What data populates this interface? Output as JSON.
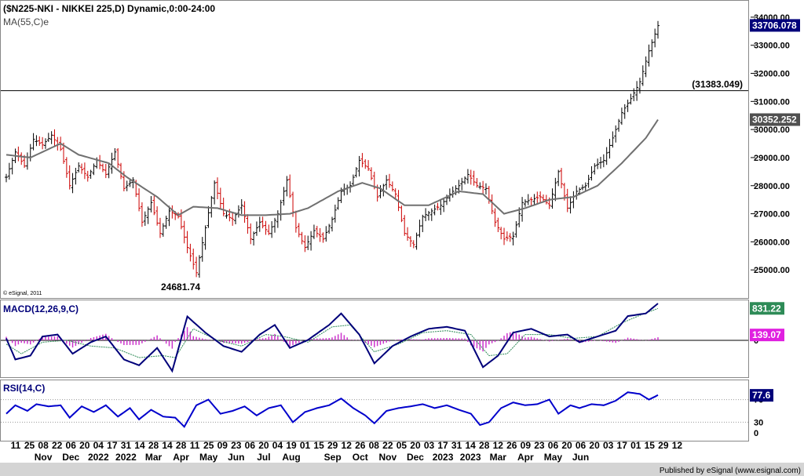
{
  "title": "($N225-NKI - NIKKEI 225,D) Dynamic,0:00-24:00",
  "ma_label": "MA(55,C)e",
  "copyright": "© eSignal, 2011",
  "credit": "Published by eSignal (www.esignal.com)",
  "colors": {
    "up_bar": "#000000",
    "down_bar": "#cc0000",
    "ma_line": "#707070",
    "macd_line": "#00007a",
    "signal_line": "#2e8b57",
    "histogram": "#cc33cc",
    "rsi_line": "#0000cc",
    "last_price_box": "#00007a",
    "ma_value_box": "#505050",
    "macd_value_box": "#2e8b57",
    "hist_value_box": "#e020e0",
    "rsi_value_box": "#00007a"
  },
  "chart_data": [
    {
      "type": "candlestick",
      "name": "price",
      "y_range": [
        24000,
        34500
      ],
      "y_ticks": [
        25000,
        26000,
        27000,
        28000,
        29000,
        30000,
        31000,
        32000,
        33000,
        34000
      ],
      "y_tick_labels": [
        "25000.00",
        "26000.00",
        "27000.00",
        "28000.00",
        "29000.00",
        "30000.00",
        "31000.00",
        "32000.00",
        "33000.00",
        "34000.00"
      ],
      "last_price": 33706.078,
      "last_price_label": "33706.078",
      "ma_value": 30352.252,
      "ma_value_label": "30352.252",
      "horizontal_line": 31383.049,
      "horizontal_line_label": "(31383.049)",
      "low_value": 24681.74,
      "low_label": "24681.74",
      "price_path": [
        {
          "i": 0,
          "v": 28300
        },
        {
          "i": 3,
          "v": 29200
        },
        {
          "i": 6,
          "v": 28700
        },
        {
          "i": 9,
          "v": 29650
        },
        {
          "i": 12,
          "v": 29450
        },
        {
          "i": 15,
          "v": 29800
        },
        {
          "i": 18,
          "v": 29300
        },
        {
          "i": 21,
          "v": 28000
        },
        {
          "i": 24,
          "v": 28700
        },
        {
          "i": 27,
          "v": 28300
        },
        {
          "i": 30,
          "v": 28900
        },
        {
          "i": 33,
          "v": 28400
        },
        {
          "i": 36,
          "v": 29200
        },
        {
          "i": 39,
          "v": 27900
        },
        {
          "i": 42,
          "v": 28200
        },
        {
          "i": 45,
          "v": 26700
        },
        {
          "i": 48,
          "v": 27400
        },
        {
          "i": 51,
          "v": 26300
        },
        {
          "i": 54,
          "v": 27100
        },
        {
          "i": 57,
          "v": 26900
        },
        {
          "i": 60,
          "v": 25800
        },
        {
          "i": 63,
          "v": 24900
        },
        {
          "i": 66,
          "v": 26500
        },
        {
          "i": 69,
          "v": 28100
        },
        {
          "i": 72,
          "v": 27000
        },
        {
          "i": 75,
          "v": 26800
        },
        {
          "i": 78,
          "v": 27300
        },
        {
          "i": 81,
          "v": 26100
        },
        {
          "i": 84,
          "v": 26700
        },
        {
          "i": 87,
          "v": 26300
        },
        {
          "i": 90,
          "v": 27000
        },
        {
          "i": 93,
          "v": 28200
        },
        {
          "i": 96,
          "v": 26500
        },
        {
          "i": 99,
          "v": 25800
        },
        {
          "i": 102,
          "v": 26400
        },
        {
          "i": 105,
          "v": 26100
        },
        {
          "i": 108,
          "v": 26800
        },
        {
          "i": 111,
          "v": 27800
        },
        {
          "i": 114,
          "v": 28000
        },
        {
          "i": 117,
          "v": 28900
        },
        {
          "i": 120,
          "v": 28600
        },
        {
          "i": 123,
          "v": 27600
        },
        {
          "i": 126,
          "v": 28200
        },
        {
          "i": 129,
          "v": 27700
        },
        {
          "i": 132,
          "v": 26300
        },
        {
          "i": 135,
          "v": 25900
        },
        {
          "i": 138,
          "v": 26900
        },
        {
          "i": 141,
          "v": 27100
        },
        {
          "i": 144,
          "v": 27300
        },
        {
          "i": 147,
          "v": 27700
        },
        {
          "i": 150,
          "v": 28000
        },
        {
          "i": 153,
          "v": 28400
        },
        {
          "i": 156,
          "v": 28000
        },
        {
          "i": 159,
          "v": 27900
        },
        {
          "i": 162,
          "v": 26700
        },
        {
          "i": 165,
          "v": 26100
        },
        {
          "i": 168,
          "v": 26200
        },
        {
          "i": 171,
          "v": 27400
        },
        {
          "i": 174,
          "v": 27500
        },
        {
          "i": 177,
          "v": 27600
        },
        {
          "i": 180,
          "v": 27300
        },
        {
          "i": 183,
          "v": 28500
        },
        {
          "i": 186,
          "v": 27200
        },
        {
          "i": 189,
          "v": 27800
        },
        {
          "i": 192,
          "v": 28000
        },
        {
          "i": 195,
          "v": 28700
        },
        {
          "i": 198,
          "v": 28900
        },
        {
          "i": 201,
          "v": 29700
        },
        {
          "i": 204,
          "v": 30600
        },
        {
          "i": 207,
          "v": 31100
        },
        {
          "i": 210,
          "v": 31700
        },
        {
          "i": 213,
          "v": 32800
        },
        {
          "i": 216,
          "v": 33700
        }
      ],
      "ma_path": [
        {
          "i": 0,
          "v": 29100
        },
        {
          "i": 8,
          "v": 29000
        },
        {
          "i": 18,
          "v": 29500
        },
        {
          "i": 24,
          "v": 29100
        },
        {
          "i": 34,
          "v": 28800
        },
        {
          "i": 40,
          "v": 28300
        },
        {
          "i": 50,
          "v": 27600
        },
        {
          "i": 57,
          "v": 26950
        },
        {
          "i": 62,
          "v": 27250
        },
        {
          "i": 70,
          "v": 27200
        },
        {
          "i": 78,
          "v": 26950
        },
        {
          "i": 86,
          "v": 26950
        },
        {
          "i": 94,
          "v": 27000
        },
        {
          "i": 100,
          "v": 27200
        },
        {
          "i": 110,
          "v": 27800
        },
        {
          "i": 118,
          "v": 28100
        },
        {
          "i": 124,
          "v": 27900
        },
        {
          "i": 132,
          "v": 27300
        },
        {
          "i": 140,
          "v": 27300
        },
        {
          "i": 150,
          "v": 27800
        },
        {
          "i": 158,
          "v": 27700
        },
        {
          "i": 165,
          "v": 27000
        },
        {
          "i": 172,
          "v": 27200
        },
        {
          "i": 180,
          "v": 27500
        },
        {
          "i": 188,
          "v": 27600
        },
        {
          "i": 196,
          "v": 28000
        },
        {
          "i": 204,
          "v": 28800
        },
        {
          "i": 212,
          "v": 29700
        },
        {
          "i": 216,
          "v": 30350
        }
      ]
    },
    {
      "type": "line",
      "name": "MACD",
      "label": "MACD(12,26,9,C)",
      "y_range": [
        -900,
        1000
      ],
      "zero_label": "0",
      "macd_value": 831.22,
      "macd_value_label": "831.22",
      "histogram_value": 139.07,
      "histogram_value_label": "139.07",
      "macd_path": [
        {
          "i": 0,
          "v": 50
        },
        {
          "i": 3,
          "v": -500
        },
        {
          "i": 8,
          "v": -400
        },
        {
          "i": 12,
          "v": 100
        },
        {
          "i": 17,
          "v": 150
        },
        {
          "i": 22,
          "v": -350
        },
        {
          "i": 28,
          "v": -50
        },
        {
          "i": 33,
          "v": 100
        },
        {
          "i": 39,
          "v": -500
        },
        {
          "i": 44,
          "v": -650
        },
        {
          "i": 50,
          "v": -200
        },
        {
          "i": 55,
          "v": -800
        },
        {
          "i": 60,
          "v": 620
        },
        {
          "i": 66,
          "v": 200
        },
        {
          "i": 72,
          "v": -150
        },
        {
          "i": 78,
          "v": -300
        },
        {
          "i": 84,
          "v": 150
        },
        {
          "i": 89,
          "v": 400
        },
        {
          "i": 94,
          "v": -200
        },
        {
          "i": 100,
          "v": 10
        },
        {
          "i": 107,
          "v": 400
        },
        {
          "i": 111,
          "v": 700
        },
        {
          "i": 117,
          "v": 150
        },
        {
          "i": 122,
          "v": -600
        },
        {
          "i": 128,
          "v": -150
        },
        {
          "i": 134,
          "v": 100
        },
        {
          "i": 140,
          "v": 300
        },
        {
          "i": 146,
          "v": 350
        },
        {
          "i": 152,
          "v": 250
        },
        {
          "i": 158,
          "v": -700
        },
        {
          "i": 163,
          "v": -400
        },
        {
          "i": 168,
          "v": 200
        },
        {
          "i": 174,
          "v": 300
        },
        {
          "i": 180,
          "v": 100
        },
        {
          "i": 186,
          "v": 150
        },
        {
          "i": 190,
          "v": -50
        },
        {
          "i": 196,
          "v": 100
        },
        {
          "i": 202,
          "v": 250
        },
        {
          "i": 206,
          "v": 630
        },
        {
          "i": 212,
          "v": 700
        },
        {
          "i": 216,
          "v": 960
        }
      ],
      "signal_path": [
        {
          "i": 0,
          "v": -100
        },
        {
          "i": 5,
          "v": -350
        },
        {
          "i": 12,
          "v": -50
        },
        {
          "i": 20,
          "v": 0
        },
        {
          "i": 28,
          "v": -150
        },
        {
          "i": 36,
          "v": -200
        },
        {
          "i": 44,
          "v": -450
        },
        {
          "i": 52,
          "v": -400
        },
        {
          "i": 56,
          "v": -450
        },
        {
          "i": 62,
          "v": 300
        },
        {
          "i": 70,
          "v": 0
        },
        {
          "i": 78,
          "v": -150
        },
        {
          "i": 86,
          "v": 150
        },
        {
          "i": 92,
          "v": 100
        },
        {
          "i": 100,
          "v": -50
        },
        {
          "i": 108,
          "v": 350
        },
        {
          "i": 114,
          "v": 400
        },
        {
          "i": 122,
          "v": -300
        },
        {
          "i": 130,
          "v": -100
        },
        {
          "i": 138,
          "v": 200
        },
        {
          "i": 146,
          "v": 250
        },
        {
          "i": 154,
          "v": 150
        },
        {
          "i": 160,
          "v": -400
        },
        {
          "i": 166,
          "v": -350
        },
        {
          "i": 172,
          "v": 150
        },
        {
          "i": 180,
          "v": 150
        },
        {
          "i": 188,
          "v": 50
        },
        {
          "i": 196,
          "v": 100
        },
        {
          "i": 204,
          "v": 450
        },
        {
          "i": 210,
          "v": 650
        },
        {
          "i": 216,
          "v": 830
        }
      ]
    },
    {
      "type": "line",
      "name": "RSI",
      "label": "RSI(14,C)",
      "y_range": [
        0,
        100
      ],
      "y_ticks": [
        30,
        70
      ],
      "y_tick_labels": [
        "30",
        "70"
      ],
      "extra_labels": [
        "0"
      ],
      "rsi_value": 77.6,
      "rsi_value_label": "77.6",
      "rsi_path": [
        {
          "i": 0,
          "v": 45
        },
        {
          "i": 3,
          "v": 60
        },
        {
          "i": 7,
          "v": 50
        },
        {
          "i": 10,
          "v": 62
        },
        {
          "i": 14,
          "v": 58
        },
        {
          "i": 18,
          "v": 60
        },
        {
          "i": 21,
          "v": 38
        },
        {
          "i": 25,
          "v": 58
        },
        {
          "i": 29,
          "v": 48
        },
        {
          "i": 33,
          "v": 60
        },
        {
          "i": 37,
          "v": 40
        },
        {
          "i": 41,
          "v": 55
        },
        {
          "i": 44,
          "v": 35
        },
        {
          "i": 48,
          "v": 52
        },
        {
          "i": 52,
          "v": 40
        },
        {
          "i": 56,
          "v": 38
        },
        {
          "i": 59,
          "v": 22
        },
        {
          "i": 63,
          "v": 60
        },
        {
          "i": 67,
          "v": 70
        },
        {
          "i": 71,
          "v": 45
        },
        {
          "i": 75,
          "v": 50
        },
        {
          "i": 79,
          "v": 58
        },
        {
          "i": 83,
          "v": 42
        },
        {
          "i": 87,
          "v": 55
        },
        {
          "i": 91,
          "v": 60
        },
        {
          "i": 95,
          "v": 30
        },
        {
          "i": 99,
          "v": 48
        },
        {
          "i": 103,
          "v": 55
        },
        {
          "i": 107,
          "v": 60
        },
        {
          "i": 111,
          "v": 72
        },
        {
          "i": 115,
          "v": 55
        },
        {
          "i": 119,
          "v": 42
        },
        {
          "i": 122,
          "v": 28
        },
        {
          "i": 126,
          "v": 50
        },
        {
          "i": 130,
          "v": 55
        },
        {
          "i": 134,
          "v": 58
        },
        {
          "i": 138,
          "v": 62
        },
        {
          "i": 142,
          "v": 55
        },
        {
          "i": 146,
          "v": 60
        },
        {
          "i": 150,
          "v": 52
        },
        {
          "i": 154,
          "v": 45
        },
        {
          "i": 157,
          "v": 25
        },
        {
          "i": 160,
          "v": 30
        },
        {
          "i": 164,
          "v": 55
        },
        {
          "i": 168,
          "v": 65
        },
        {
          "i": 172,
          "v": 60
        },
        {
          "i": 176,
          "v": 62
        },
        {
          "i": 180,
          "v": 70
        },
        {
          "i": 183,
          "v": 45
        },
        {
          "i": 187,
          "v": 60
        },
        {
          "i": 190,
          "v": 55
        },
        {
          "i": 194,
          "v": 62
        },
        {
          "i": 198,
          "v": 60
        },
        {
          "i": 202,
          "v": 68
        },
        {
          "i": 206,
          "v": 83
        },
        {
          "i": 210,
          "v": 80
        },
        {
          "i": 213,
          "v": 70
        },
        {
          "i": 216,
          "v": 78
        }
      ]
    }
  ],
  "x_axis": {
    "days": [
      "11",
      "25",
      "08",
      "22",
      "06",
      "20",
      "04",
      "17",
      "31",
      "14",
      "28",
      "14",
      "28",
      "11",
      "25",
      "09",
      "23",
      "06",
      "20",
      "04",
      "19",
      "01",
      "15",
      "29",
      "12",
      "26",
      "08",
      "22",
      "05",
      "20",
      "03",
      "17",
      "31",
      "14",
      "28",
      "12",
      "26",
      "09",
      "23",
      "06",
      "20",
      "06",
      "20",
      "03",
      "17",
      "01",
      "15",
      "29",
      "12"
    ],
    "months": [
      {
        "label": "Nov",
        "day_index": 2
      },
      {
        "label": "Dec",
        "day_index": 4
      },
      {
        "label": "2022",
        "day_index": 6
      },
      {
        "label": "2022",
        "day_index": 8
      },
      {
        "label": "Mar",
        "day_index": 10
      },
      {
        "label": "Apr",
        "day_index": 12
      },
      {
        "label": "May",
        "day_index": 14
      },
      {
        "label": "Jun",
        "day_index": 16
      },
      {
        "label": "Jul",
        "day_index": 18
      },
      {
        "label": "Aug",
        "day_index": 20
      },
      {
        "label": "Sep",
        "day_index": 23
      },
      {
        "label": "Oct",
        "day_index": 25
      },
      {
        "label": "Nov",
        "day_index": 27
      },
      {
        "label": "Dec",
        "day_index": 29
      },
      {
        "label": "2023",
        "day_index": 31
      },
      {
        "label": "2023",
        "day_index": 33
      },
      {
        "label": "Mar",
        "day_index": 35
      },
      {
        "label": "Apr",
        "day_index": 37
      },
      {
        "label": "May",
        "day_index": 39
      },
      {
        "label": "Jun",
        "day_index": 41
      }
    ]
  }
}
